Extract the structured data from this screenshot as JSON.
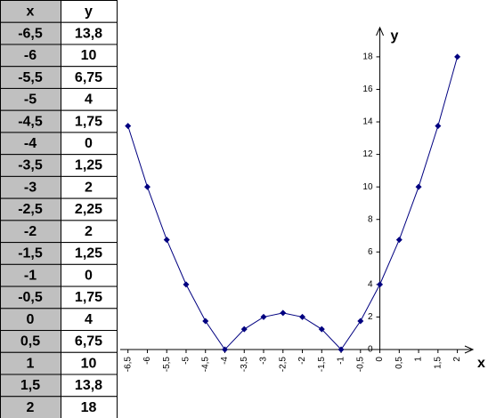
{
  "table": {
    "header": [
      "x",
      "y"
    ],
    "rows": [
      [
        "-6,5",
        "13,8"
      ],
      [
        "-6",
        "10"
      ],
      [
        "-5,5",
        "6,75"
      ],
      [
        "-5",
        "4"
      ],
      [
        "-4,5",
        "1,75"
      ],
      [
        "-4",
        "0"
      ],
      [
        "-3,5",
        "1,25"
      ],
      [
        "-3",
        "2"
      ],
      [
        "-2,5",
        "2,25"
      ],
      [
        "-2",
        "2"
      ],
      [
        "-1,5",
        "1,25"
      ],
      [
        "-1",
        "0"
      ],
      [
        "-0,5",
        "1,75"
      ],
      [
        "0",
        "4"
      ],
      [
        "0,5",
        "6,75"
      ],
      [
        "1",
        "10"
      ],
      [
        "1,5",
        "13,8"
      ],
      [
        "2",
        "18"
      ]
    ]
  },
  "chart_data": {
    "type": "line",
    "x_label": "x",
    "y_label": "y",
    "x": [
      -6.5,
      -6,
      -5.5,
      -5,
      -4.5,
      -4,
      -3.5,
      -3,
      -2.5,
      -2,
      -1.5,
      -1,
      -0.5,
      0,
      0.5,
      1,
      1.5,
      2
    ],
    "series": [
      {
        "color": "#000080",
        "values": [
          13.75,
          10,
          6.75,
          4,
          1.75,
          0,
          1.25,
          2,
          2.25,
          2,
          1.25,
          0,
          1.75,
          4,
          6.75,
          10,
          13.75,
          18
        ]
      }
    ],
    "xlim": [
      -6.7,
      2.4
    ],
    "ylim": [
      0,
      19.8
    ],
    "xticks": [
      {
        "value": -6.5,
        "label": "-6,5"
      },
      -6,
      {
        "value": -5.5,
        "label": "-5,5"
      },
      -5,
      {
        "value": -4.5,
        "label": "-4,5"
      },
      -4,
      {
        "value": -3.5,
        "label": "-3,5"
      },
      -3,
      {
        "value": -2.5,
        "label": "-2,5"
      },
      -2,
      {
        "value": -1.5,
        "label": "-1,5"
      },
      -1,
      {
        "value": -0.5,
        "label": "-0,5"
      },
      0,
      {
        "value": 0.5,
        "label": "0,5"
      },
      1,
      {
        "value": 1.5,
        "label": "1,5"
      },
      2
    ],
    "yticks": [
      0,
      2,
      4,
      6,
      8,
      10,
      12,
      14,
      16,
      18
    ]
  }
}
